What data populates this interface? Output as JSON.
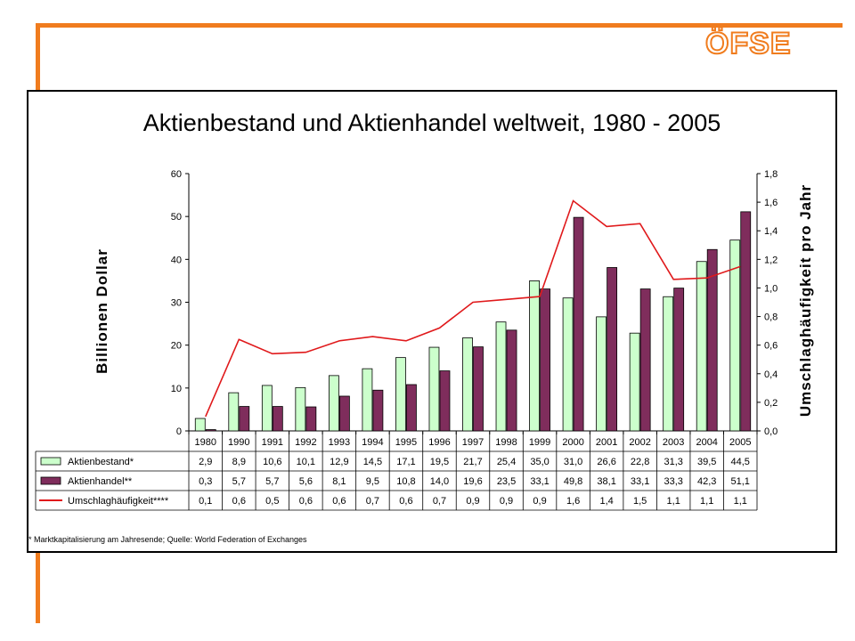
{
  "logo": {
    "text": "ÖFSE"
  },
  "chart_data": {
    "type": "bar",
    "title": "Aktienbestand und Aktienhandel weltweit, 1980 - 2005",
    "ylabel": "Billionen  Dollar",
    "y2label": "Umschlaghäufigkeit pro Jahr",
    "ylim": [
      0,
      60
    ],
    "y2lim": [
      0,
      1.8
    ],
    "yticks": [
      "0",
      "10",
      "20",
      "30",
      "40",
      "50",
      "60"
    ],
    "y2ticks": [
      "0,0",
      "0,2",
      "0,4",
      "0,6",
      "0,8",
      "1,0",
      "1,2",
      "1,4",
      "1,6",
      "1,8"
    ],
    "categories": [
      "1980",
      "1990",
      "1991",
      "1992",
      "1993",
      "1994",
      "1995",
      "1996",
      "1997",
      "1998",
      "1999",
      "2000",
      "2001",
      "2002",
      "2003",
      "2004",
      "2005"
    ],
    "series": [
      {
        "name": "Aktienbestand*",
        "kind": "bar",
        "color": "#ccffcc",
        "values": [
          2.9,
          8.9,
          10.6,
          10.1,
          12.9,
          14.5,
          17.1,
          19.5,
          21.7,
          25.4,
          35.0,
          31.0,
          26.6,
          22.8,
          31.3,
          39.5,
          44.5
        ],
        "labels": [
          "2,9",
          "8,9",
          "10,6",
          "10,1",
          "12,9",
          "14,5",
          "17,1",
          "19,5",
          "21,7",
          "25,4",
          "35,0",
          "31,0",
          "26,6",
          "22,8",
          "31,3",
          "39,5",
          "44,5"
        ]
      },
      {
        "name": "Aktienhandel**",
        "kind": "bar",
        "color": "#7f2d5c",
        "values": [
          0.3,
          5.7,
          5.7,
          5.6,
          8.1,
          9.5,
          10.8,
          14.0,
          19.6,
          23.5,
          33.1,
          49.8,
          38.1,
          33.1,
          33.3,
          42.3,
          51.1
        ],
        "labels": [
          "0,3",
          "5,7",
          "5,7",
          "5,6",
          "8,1",
          "9,5",
          "10,8",
          "14,0",
          "19,6",
          "23,5",
          "33,1",
          "49,8",
          "38,1",
          "33,1",
          "33,3",
          "42,3",
          "51,1"
        ]
      },
      {
        "name": "Umschlaghäufigkeit****",
        "kind": "line",
        "axis": "y2",
        "color": "#e0191b",
        "values": [
          0.1,
          0.64,
          0.54,
          0.55,
          0.63,
          0.66,
          0.63,
          0.72,
          0.9,
          0.92,
          0.94,
          1.61,
          1.43,
          1.45,
          1.06,
          1.07,
          1.15
        ],
        "labels": [
          "0,1",
          "0,6",
          "0,5",
          "0,6",
          "0,6",
          "0,7",
          "0,6",
          "0,7",
          "0,9",
          "0,9",
          "0,9",
          "1,6",
          "1,4",
          "1,5",
          "1,1",
          "1,1",
          "1,1"
        ]
      }
    ],
    "grid": false,
    "legend": "table below chart"
  },
  "footnote": "* Marktkapitalisierung am Jahresende; Quelle: World Federation of Exchanges"
}
